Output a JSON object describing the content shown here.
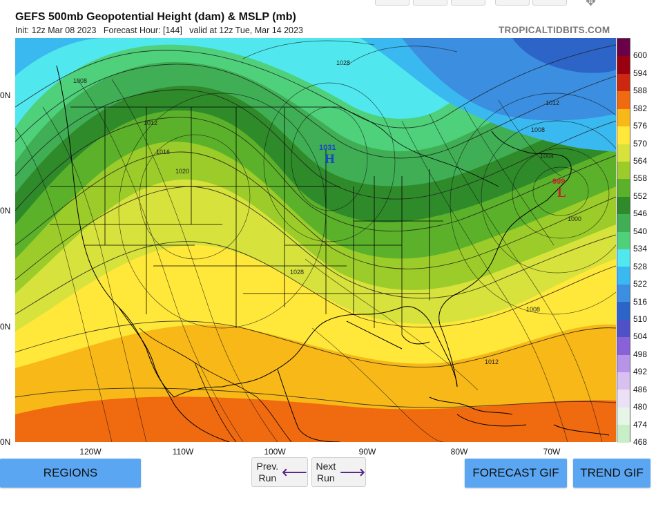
{
  "header": {
    "title": "GEFS 500mb Geopotential Height (dam) & MSLP (mb)",
    "subtitle": "Init: 12z Mar 08 2023   Forecast Hour: [144]   valid at 12z Tue, Mar 14 2023",
    "credit": "TROPICALTIDBITS.COM"
  },
  "map": {
    "lat_labels": [
      "0N",
      "0N",
      "0N",
      "0N"
    ],
    "lon_labels": [
      "120W",
      "110W",
      "100W",
      "90W",
      "80W",
      "70W"
    ],
    "isobar_labels": [
      "1008",
      "1028",
      "1012",
      "1016",
      "1020",
      "1028",
      "1012",
      "1008",
      "1004",
      "1000",
      "1008",
      "1012"
    ],
    "high": {
      "letter": "H",
      "value": "1031",
      "color": "#1a44c8"
    },
    "low": {
      "letter": "L",
      "value": "999",
      "color": "#c8202a"
    }
  },
  "colorbar": {
    "levels": [
      "600",
      "594",
      "588",
      "582",
      "576",
      "570",
      "564",
      "558",
      "552",
      "546",
      "540",
      "534",
      "528",
      "522",
      "516",
      "510",
      "504",
      "498",
      "492",
      "486",
      "480",
      "474",
      "468"
    ],
    "colors": [
      "#6a0048",
      "#9a0010",
      "#cc2810",
      "#f06a10",
      "#f8b818",
      "#ffe83a",
      "#d7e23c",
      "#9ccc2a",
      "#5bb12a",
      "#2f8a2a",
      "#3fae54",
      "#4fd07a",
      "#50e8ee",
      "#3ab9f0",
      "#3b8ee0",
      "#2c64c8",
      "#5050c8",
      "#8a62d8",
      "#b894e8",
      "#d8c0f0",
      "#ece0f6",
      "#e6f5e6",
      "#c8eec8"
    ]
  },
  "buttons": {
    "regions": "REGIONS",
    "prev_line1": "Prev.",
    "prev_line2": "Run",
    "next_line1": "Next",
    "next_line2": "Run",
    "forecast_gif": "FORECAST GIF",
    "trend_gif": "TREND GIF"
  }
}
